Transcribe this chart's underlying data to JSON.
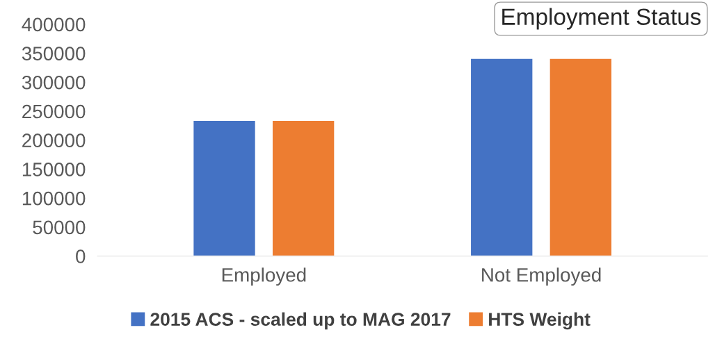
{
  "chart_data": {
    "type": "bar",
    "title": "Employment Status",
    "categories": [
      "Employed",
      "Not Employed"
    ],
    "series": [
      {
        "name": "2015 ACS - scaled up to MAG 2017",
        "color": "#4472c4",
        "values": [
          234000,
          341000
        ]
      },
      {
        "name": "HTS Weight",
        "color": "#ed7d31",
        "values": [
          234000,
          341000
        ]
      }
    ],
    "ylim": [
      0,
      400000
    ],
    "yticks": [
      0,
      50000,
      100000,
      150000,
      200000,
      250000,
      300000,
      350000,
      400000
    ],
    "grid": false,
    "legend": "bottom"
  }
}
